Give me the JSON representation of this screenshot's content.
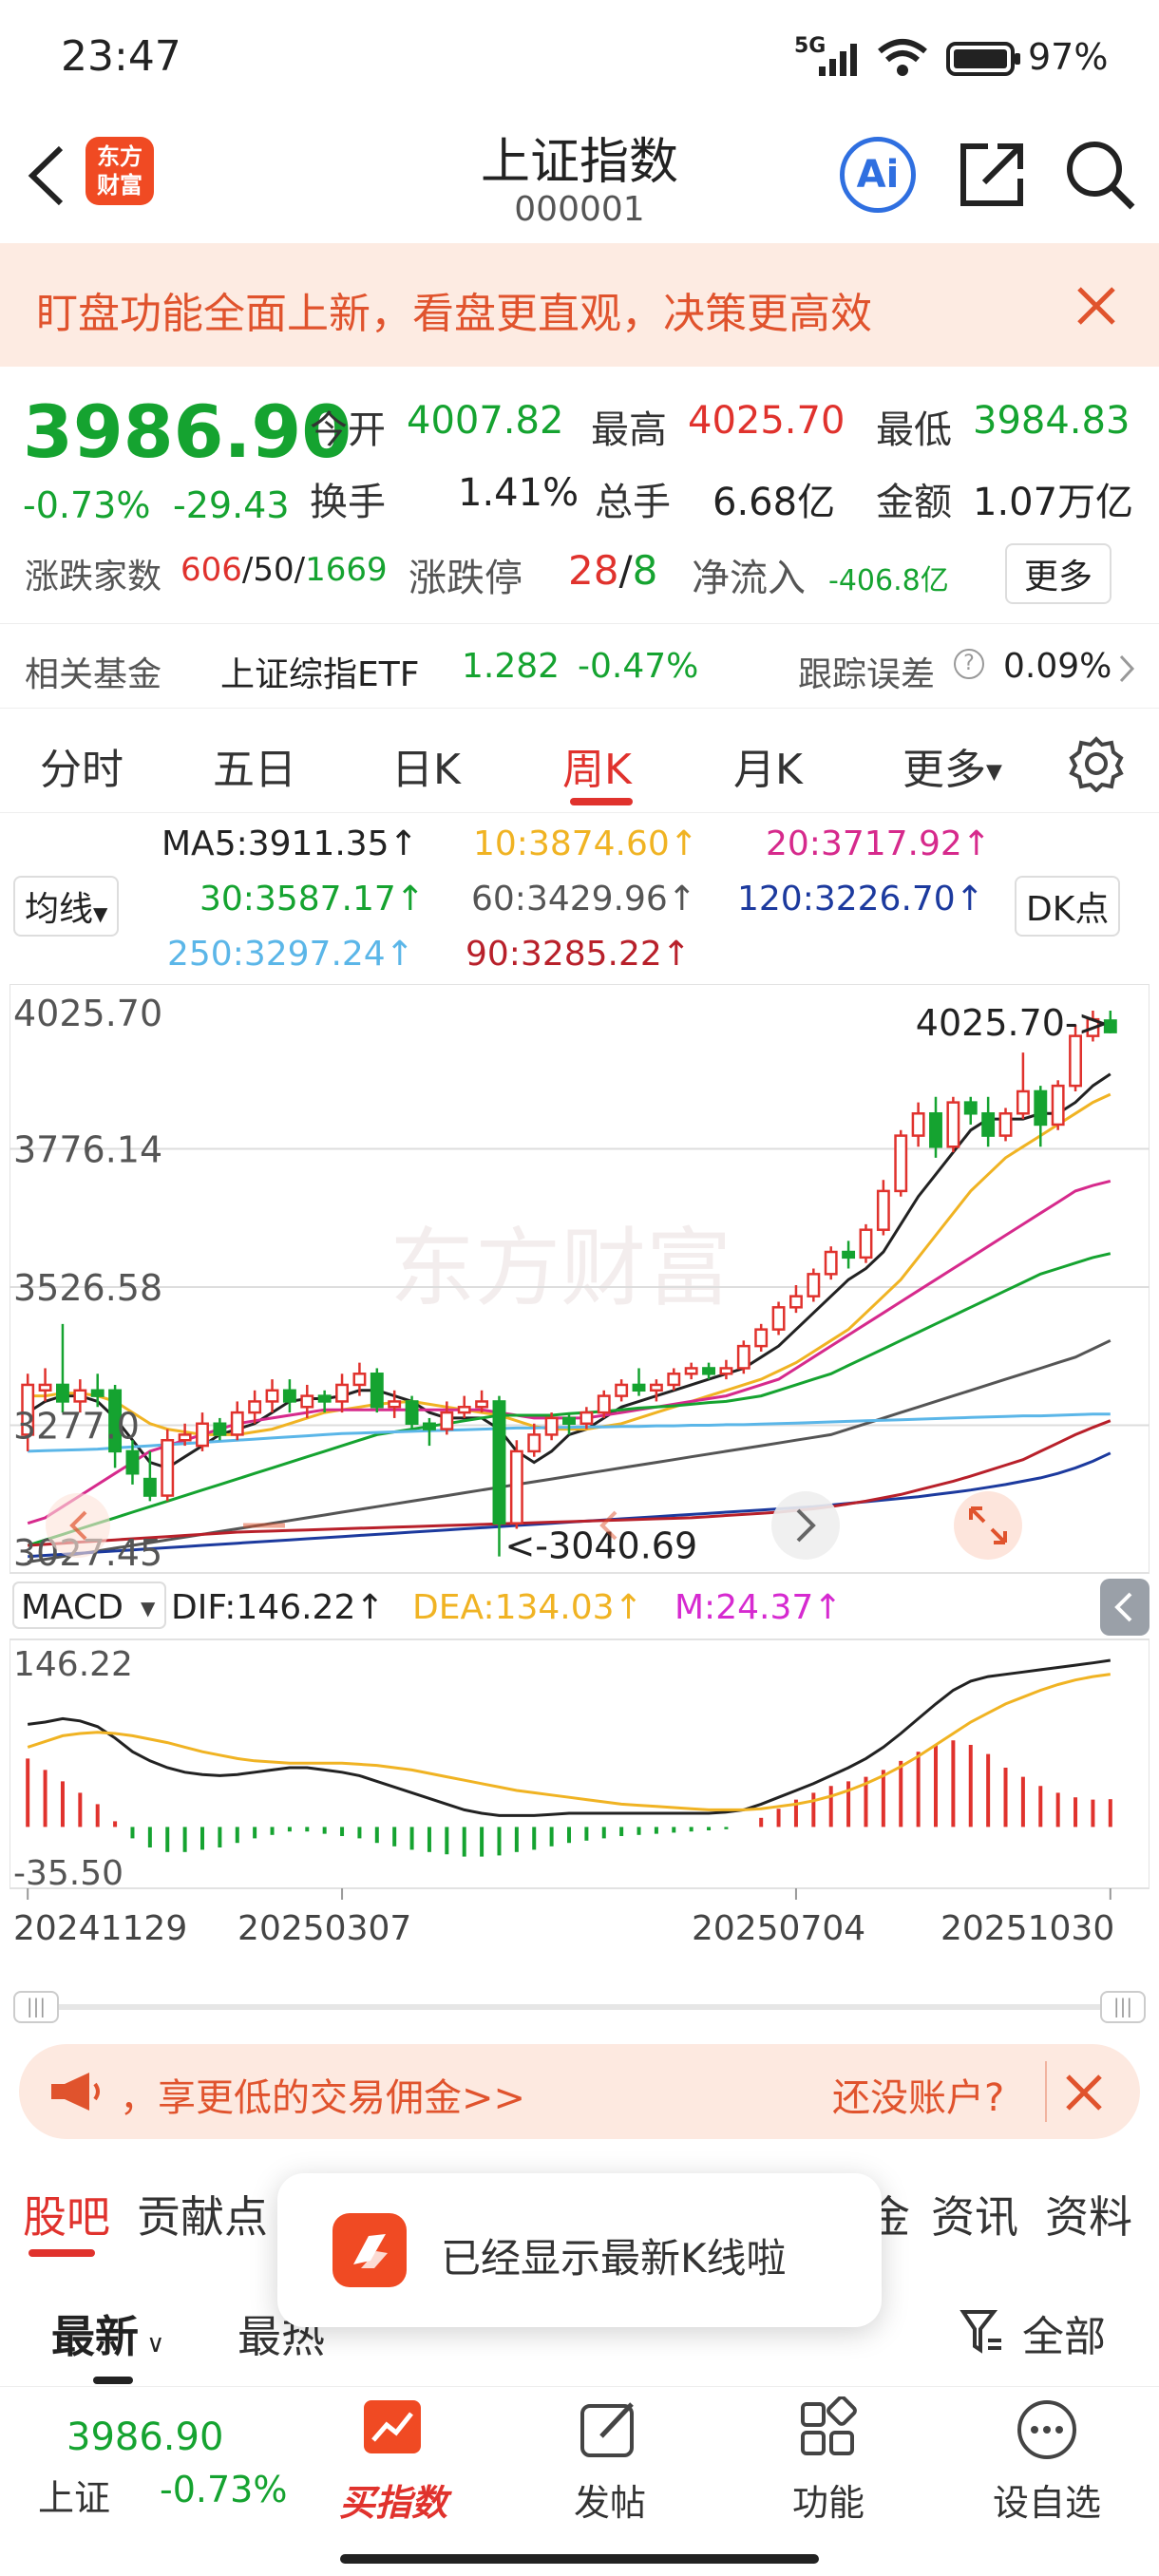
{
  "status": {
    "time": "23:47",
    "network": "5G",
    "battery": "97%"
  },
  "header": {
    "title": "上证指数",
    "code": "000001",
    "logo_text": "东方\n财富",
    "ai_label": "Ai"
  },
  "banner": {
    "text": "盯盘功能全面上新，看盘更直观，决策更高效"
  },
  "quote": {
    "price": "3986.90",
    "change_pct": "-0.73%",
    "change": "-29.43",
    "open_label": "今开",
    "open": "4007.82",
    "high_label": "最高",
    "high": "4025.70",
    "low_label": "最低",
    "low": "3984.83",
    "turnover_label": "换手",
    "turnover": "1.41%",
    "volume_label": "总手",
    "volume": "6.68亿",
    "amount_label": "金额",
    "amount": "1.07万亿",
    "breadth_label": "涨跌家数",
    "up": "606",
    "flat": "50",
    "down": "1669",
    "limit_label": "涨跌停",
    "limit_up": "28",
    "limit_down": "8",
    "netflow_label": "净流入",
    "netflow": "-406.8亿",
    "more": "更多"
  },
  "fund": {
    "label": "相关基金",
    "name": "上证综指ETF",
    "price": "1.282",
    "change": "-0.47%",
    "track_label": "跟踪误差",
    "track": "0.09%"
  },
  "tabs": [
    {
      "label": "分时"
    },
    {
      "label": "五日"
    },
    {
      "label": "日K"
    },
    {
      "label": "周K"
    },
    {
      "label": "月K"
    },
    {
      "label": "更多"
    }
  ],
  "ma": {
    "selector": "均线",
    "dk": "DK点",
    "items": [
      {
        "label": "MA5:3911.35↑",
        "color": "#222222"
      },
      {
        "label": "10:3874.60↑",
        "color": "#f0b323"
      },
      {
        "label": "20:3717.92↑",
        "color": "#d62a8c"
      },
      {
        "label": "30:3587.17↑",
        "color": "#15a330"
      },
      {
        "label": "60:3429.96↑",
        "color": "#555555"
      },
      {
        "label": "120:3226.70↑",
        "color": "#1c3a9e"
      },
      {
        "label": "250:3297.24↑",
        "color": "#5bb6e8"
      },
      {
        "label": "90:3285.22↑",
        "color": "#b8202a"
      }
    ]
  },
  "chart_data": {
    "type": "candlestick",
    "ylim": [
      3027.45,
      4025.7
    ],
    "y_ticks": [
      "4025.70",
      "3776.14",
      "3526.58",
      "3277.0",
      "3027.45"
    ],
    "high_label": "4025.70->",
    "low_label": "<-3040.69",
    "watermark": "东方财富",
    "x_ticks": [
      "20241129",
      "20250307",
      "20250704",
      "20251030"
    ],
    "candles": [
      [
        3260,
        3350,
        3230,
        3370
      ],
      [
        3340,
        3350,
        3320,
        3380
      ],
      [
        3350,
        3320,
        3300,
        3460
      ],
      [
        3320,
        3340,
        3300,
        3360
      ],
      [
        3340,
        3330,
        3310,
        3370
      ],
      [
        3340,
        3230,
        3200,
        3350
      ],
      [
        3230,
        3190,
        3170,
        3250
      ],
      [
        3180,
        3150,
        3140,
        3230
      ],
      [
        3150,
        3250,
        3140,
        3270
      ],
      [
        3250,
        3260,
        3240,
        3280
      ],
      [
        3240,
        3280,
        3230,
        3300
      ],
      [
        3280,
        3260,
        3250,
        3290
      ],
      [
        3260,
        3300,
        3250,
        3320
      ],
      [
        3300,
        3320,
        3280,
        3340
      ],
      [
        3320,
        3340,
        3300,
        3360
      ],
      [
        3340,
        3320,
        3300,
        3360
      ],
      [
        3310,
        3330,
        3290,
        3350
      ],
      [
        3330,
        3320,
        3300,
        3340
      ],
      [
        3320,
        3350,
        3300,
        3370
      ],
      [
        3350,
        3370,
        3330,
        3390
      ],
      [
        3370,
        3310,
        3300,
        3380
      ],
      [
        3310,
        3320,
        3290,
        3340
      ],
      [
        3320,
        3280,
        3270,
        3330
      ],
      [
        3280,
        3270,
        3240,
        3290
      ],
      [
        3270,
        3300,
        3260,
        3320
      ],
      [
        3300,
        3310,
        3290,
        3330
      ],
      [
        3310,
        3320,
        3300,
        3340
      ],
      [
        3320,
        3100,
        3040,
        3330
      ],
      [
        3100,
        3230,
        3090,
        3250
      ],
      [
        3230,
        3260,
        3220,
        3280
      ],
      [
        3260,
        3290,
        3250,
        3300
      ],
      [
        3290,
        3280,
        3260,
        3300
      ],
      [
        3280,
        3300,
        3270,
        3310
      ],
      [
        3300,
        3330,
        3290,
        3340
      ],
      [
        3330,
        3350,
        3320,
        3360
      ],
      [
        3350,
        3340,
        3330,
        3380
      ],
      [
        3340,
        3350,
        3320,
        3360
      ],
      [
        3350,
        3370,
        3340,
        3380
      ],
      [
        3370,
        3380,
        3360,
        3390
      ],
      [
        3380,
        3370,
        3360,
        3390
      ],
      [
        3370,
        3380,
        3360,
        3395
      ],
      [
        3380,
        3420,
        3370,
        3430
      ],
      [
        3420,
        3450,
        3410,
        3460
      ],
      [
        3450,
        3490,
        3440,
        3500
      ],
      [
        3490,
        3510,
        3480,
        3530
      ],
      [
        3510,
        3550,
        3500,
        3560
      ],
      [
        3550,
        3590,
        3540,
        3600
      ],
      [
        3590,
        3580,
        3560,
        3610
      ],
      [
        3580,
        3630,
        3570,
        3640
      ],
      [
        3630,
        3700,
        3620,
        3720
      ],
      [
        3700,
        3800,
        3690,
        3810
      ],
      [
        3800,
        3840,
        3780,
        3860
      ],
      [
        3840,
        3780,
        3760,
        3870
      ],
      [
        3780,
        3860,
        3770,
        3870
      ],
      [
        3860,
        3840,
        3820,
        3870
      ],
      [
        3840,
        3800,
        3780,
        3870
      ],
      [
        3800,
        3840,
        3790,
        3850
      ],
      [
        3840,
        3880,
        3830,
        3950
      ],
      [
        3880,
        3820,
        3780,
        3890
      ],
      [
        3820,
        3890,
        3810,
        3900
      ],
      [
        3890,
        3980,
        3880,
        4000
      ],
      [
        3980,
        4010,
        3970,
        4025.7
      ],
      [
        4007.82,
        3986.9,
        3984.83,
        4025.7
      ]
    ],
    "ma_lines": [
      {
        "name": "MA5",
        "color": "#222222",
        "values": [
          3300,
          3320,
          3330,
          3330,
          3320,
          3290,
          3250,
          3210,
          3200,
          3220,
          3240,
          3260,
          3270,
          3280,
          3300,
          3320,
          3325,
          3325,
          3330,
          3340,
          3340,
          3330,
          3320,
          3300,
          3290,
          3290,
          3290,
          3270,
          3230,
          3210,
          3230,
          3260,
          3270,
          3290,
          3310,
          3320,
          3330,
          3340,
          3350,
          3360,
          3370,
          3380,
          3400,
          3420,
          3450,
          3480,
          3510,
          3540,
          3560,
          3590,
          3640,
          3690,
          3730,
          3770,
          3810,
          3830,
          3830,
          3830,
          3840,
          3840,
          3860,
          3890,
          3911.35
        ]
      },
      {
        "name": "MA10",
        "color": "#f0b323",
        "values": [
          3330,
          3330,
          3335,
          3335,
          3330,
          3320,
          3300,
          3280,
          3270,
          3265,
          3260,
          3260,
          3260,
          3265,
          3270,
          3280,
          3290,
          3300,
          3305,
          3310,
          3315,
          3318,
          3320,
          3315,
          3310,
          3305,
          3300,
          3295,
          3285,
          3275,
          3270,
          3270,
          3270,
          3275,
          3280,
          3290,
          3300,
          3310,
          3320,
          3330,
          3340,
          3350,
          3360,
          3375,
          3390,
          3410,
          3430,
          3450,
          3480,
          3510,
          3540,
          3580,
          3620,
          3660,
          3700,
          3730,
          3760,
          3780,
          3800,
          3820,
          3840,
          3860,
          3874.6
        ]
      },
      {
        "name": "MA20",
        "color": "#d62a8c",
        "values": [
          3100,
          3110,
          3130,
          3150,
          3170,
          3190,
          3210,
          3230,
          3240,
          3250,
          3260,
          3270,
          3280,
          3285,
          3290,
          3295,
          3300,
          3305,
          3305,
          3305,
          3305,
          3305,
          3305,
          3305,
          3305,
          3305,
          3305,
          3300,
          3295,
          3290,
          3290,
          3290,
          3290,
          3295,
          3300,
          3305,
          3310,
          3315,
          3320,
          3325,
          3330,
          3340,
          3350,
          3360,
          3380,
          3400,
          3420,
          3440,
          3460,
          3480,
          3500,
          3520,
          3540,
          3560,
          3580,
          3600,
          3620,
          3640,
          3660,
          3680,
          3700,
          3710,
          3717.92
        ]
      },
      {
        "name": "MA30",
        "color": "#15a330",
        "values": [
          3060,
          3070,
          3080,
          3090,
          3100,
          3110,
          3120,
          3130,
          3140,
          3150,
          3160,
          3170,
          3180,
          3190,
          3200,
          3210,
          3220,
          3230,
          3240,
          3250,
          3260,
          3265,
          3270,
          3275,
          3280,
          3285,
          3290,
          3295,
          3295,
          3295,
          3295,
          3298,
          3300,
          3302,
          3305,
          3308,
          3310,
          3312,
          3315,
          3318,
          3320,
          3325,
          3330,
          3340,
          3350,
          3360,
          3370,
          3385,
          3400,
          3415,
          3430,
          3445,
          3460,
          3475,
          3490,
          3505,
          3520,
          3535,
          3550,
          3560,
          3570,
          3580,
          3587.17
        ]
      },
      {
        "name": "MA60",
        "color": "#555555",
        "values": [
          3030,
          3035,
          3040,
          3045,
          3050,
          3055,
          3060,
          3065,
          3070,
          3075,
          3080,
          3085,
          3090,
          3095,
          3100,
          3105,
          3110,
          3115,
          3120,
          3125,
          3130,
          3135,
          3140,
          3145,
          3150,
          3155,
          3160,
          3165,
          3170,
          3175,
          3180,
          3185,
          3190,
          3195,
          3200,
          3205,
          3210,
          3215,
          3220,
          3225,
          3230,
          3235,
          3240,
          3245,
          3250,
          3255,
          3260,
          3270,
          3280,
          3290,
          3300,
          3310,
          3320,
          3330,
          3340,
          3350,
          3360,
          3370,
          3380,
          3390,
          3400,
          3415,
          3429.96
        ]
      },
      {
        "name": "MA120",
        "color": "#1c3a9e",
        "values": [
          3040,
          3042,
          3044,
          3046,
          3048,
          3050,
          3052,
          3054,
          3056,
          3058,
          3060,
          3062,
          3064,
          3066,
          3068,
          3070,
          3072,
          3074,
          3076,
          3078,
          3080,
          3082,
          3084,
          3086,
          3088,
          3090,
          3092,
          3094,
          3096,
          3098,
          3100,
          3102,
          3104,
          3106,
          3108,
          3110,
          3112,
          3114,
          3116,
          3118,
          3120,
          3122,
          3124,
          3126,
          3128,
          3130,
          3133,
          3136,
          3139,
          3142,
          3145,
          3148,
          3152,
          3156,
          3160,
          3165,
          3170,
          3176,
          3182,
          3190,
          3200,
          3212,
          3226.7
        ]
      },
      {
        "name": "MA250",
        "color": "#5bb6e8",
        "values": [
          3230,
          3231,
          3232,
          3233,
          3234,
          3236,
          3238,
          3240,
          3242,
          3244,
          3246,
          3248,
          3250,
          3252,
          3254,
          3256,
          3258,
          3260,
          3262,
          3263,
          3264,
          3265,
          3266,
          3267,
          3268,
          3269,
          3270,
          3271,
          3272,
          3272,
          3273,
          3273,
          3274,
          3274,
          3275,
          3275,
          3276,
          3276,
          3277,
          3277,
          3278,
          3278,
          3279,
          3280,
          3281,
          3282,
          3283,
          3284,
          3285,
          3286,
          3287,
          3288,
          3289,
          3290,
          3291,
          3292,
          3293,
          3294,
          3294,
          3295,
          3296,
          3297,
          3297.24
        ]
      },
      {
        "name": "MA90",
        "color": "#b8202a",
        "values": [
          3060,
          3062,
          3064,
          3066,
          3068,
          3070,
          3072,
          3074,
          3076,
          3078,
          3080,
          3082,
          3084,
          3085,
          3086,
          3087,
          3088,
          3089,
          3090,
          3091,
          3092,
          3093,
          3094,
          3095,
          3096,
          3097,
          3098,
          3099,
          3100,
          3101,
          3102,
          3103,
          3104,
          3105,
          3106,
          3107,
          3108,
          3109,
          3110,
          3112,
          3114,
          3116,
          3118,
          3120,
          3123,
          3126,
          3130,
          3135,
          3140,
          3146,
          3152,
          3160,
          3168,
          3176,
          3185,
          3195,
          3205,
          3215,
          3230,
          3245,
          3260,
          3273,
          3285.22
        ]
      }
    ],
    "macd": {
      "selector": "MACD",
      "dif_label": "DIF:146.22↑",
      "dea_label": "DEA:134.03↑",
      "m_label": "M:24.37↑",
      "ylim": [
        -35.5,
        146.22
      ],
      "y_ticks": [
        "146.22",
        "-35.50"
      ],
      "dif": [
        90,
        92,
        95,
        93,
        88,
        78,
        66,
        58,
        52,
        48,
        46,
        45,
        46,
        48,
        50,
        52,
        52,
        50,
        48,
        45,
        40,
        35,
        30,
        25,
        20,
        15,
        12,
        10,
        10,
        10,
        11,
        12,
        12,
        12,
        12,
        12,
        12,
        12,
        12,
        12,
        13,
        15,
        20,
        26,
        32,
        38,
        45,
        52,
        60,
        70,
        82,
        95,
        108,
        120,
        128,
        132,
        134,
        136,
        138,
        140,
        142,
        144,
        146.22
      ],
      "dea": [
        70,
        75,
        80,
        82,
        83,
        82,
        80,
        77,
        74,
        70,
        66,
        63,
        60,
        58,
        57,
        56,
        56,
        56,
        56,
        55,
        54,
        52,
        50,
        47,
        44,
        41,
        38,
        35,
        32,
        30,
        28,
        26,
        24,
        22,
        20,
        19,
        18,
        17,
        16,
        15,
        15,
        15,
        16,
        18,
        20,
        23,
        27,
        32,
        38,
        45,
        53,
        62,
        72,
        82,
        92,
        100,
        108,
        114,
        120,
        125,
        129,
        132,
        134.03
      ],
      "hist": [
        60,
        50,
        40,
        30,
        20,
        5,
        -10,
        -18,
        -22,
        -22,
        -20,
        -18,
        -14,
        -10,
        -7,
        -4,
        -4,
        -6,
        -8,
        -10,
        -14,
        -17,
        -20,
        -22,
        -24,
        -26,
        -26,
        -25,
        -22,
        -20,
        -17,
        -14,
        -12,
        -10,
        -8,
        -7,
        -6,
        -5,
        -4,
        -3,
        -2,
        0,
        8,
        16,
        24,
        30,
        36,
        40,
        44,
        50,
        58,
        66,
        72,
        76,
        72,
        64,
        52,
        44,
        36,
        30,
        26,
        24,
        24.37
      ]
    }
  },
  "promo": {
    "text": "，享更低的交易佣金>>",
    "account": "还没账户?"
  },
  "subtabs": [
    {
      "label": "股吧"
    },
    {
      "label": "贡献点"
    },
    {
      "label": "金"
    },
    {
      "label": "资讯"
    },
    {
      "label": "资料"
    }
  ],
  "filter": {
    "latest": "最新",
    "hot": "最热",
    "all": "全部"
  },
  "toast": {
    "text": "已经显示最新K线啦"
  },
  "bottombar": {
    "index_price": "3986.90",
    "index_name": "上证",
    "index_change": "-0.73%",
    "items": [
      {
        "label": "买指数"
      },
      {
        "label": "发帖"
      },
      {
        "label": "功能"
      },
      {
        "label": "设自选"
      }
    ]
  }
}
